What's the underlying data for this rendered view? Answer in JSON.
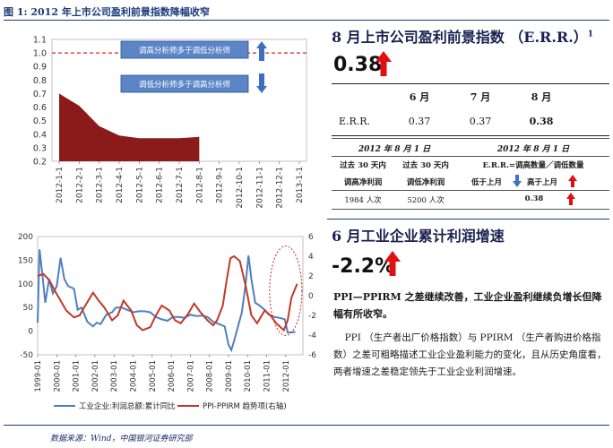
{
  "figure_title": "图 1:  2012 年上市公司盈利前景指数降幅收窄",
  "top_chart": {
    "chart_data": {
      "type": "area",
      "categories": [
        "2012-1-1",
        "2012-2-1",
        "2012-3-1",
        "2012-4-1",
        "2012-5-1",
        "2012-6-1",
        "2012-7-1",
        "2012-8-1",
        "2012-9-1",
        "2012-10-1",
        "2012-11-1",
        "2012-12-1",
        "2013-1-1"
      ],
      "values": [
        0.7,
        0.61,
        0.46,
        0.39,
        0.37,
        0.37,
        0.37,
        0.38,
        null,
        null,
        null,
        null,
        null
      ],
      "ylim": [
        0.2,
        1.1
      ],
      "yticks": [
        "1.1",
        "1.0",
        "0.9",
        "0.8",
        "0.7",
        "0.6",
        "0.5",
        "0.4",
        "0.3",
        "0.2"
      ],
      "reference_line": 1.0,
      "series_color": "#8b1a1a",
      "annotations": [
        "调高分析师多于调低分析师",
        "调低分析师多于调高分析师"
      ]
    }
  },
  "section_errr": {
    "heading": "8 月上市公司盈利前景指数 （E.R.R.）",
    "heading_sup": "1",
    "value": "0.38",
    "arrow": "up-arrow-icon",
    "table": {
      "months": [
        "6 月",
        "7 月",
        "8 月"
      ],
      "row_label": "E.R.R.",
      "values": [
        "0.37",
        "0.37",
        "0.38"
      ]
    },
    "sub_table": {
      "date_left": "2012 年 8 月 1 日",
      "date_right": "2012 年 8 月 1 日",
      "col1_line1": "过去 30 天内",
      "col1_line2": "调高净利润",
      "col2_line1": "过去 30 天内",
      "col2_line2": "调低净利润",
      "col3_line1": "E.R.R.=调高数量／调低数量",
      "col3_line2a": "低于上月",
      "col3_line2b": "高于上月",
      "col1_value": "1984 人次",
      "col2_value": "5200 人次",
      "col3_value": "0.38"
    }
  },
  "bottom_chart": {
    "chart_data": {
      "type": "line",
      "x_ticks": [
        "1999-01",
        "2000-01",
        "2001-01",
        "2002-01",
        "2003-01",
        "2004-01",
        "2005-01",
        "2006-01",
        "2007-01",
        "2008-01",
        "2009-01",
        "2010-01",
        "2011-01",
        "2012-01"
      ],
      "y_left_ticks": [
        "200",
        "150",
        "100",
        "50",
        "0",
        "-50"
      ],
      "y_right_ticks": [
        "6",
        "4",
        "2",
        "0",
        "-2",
        "-4",
        "-6"
      ],
      "ylim_left": [
        -50,
        200
      ],
      "ylim_right": [
        -6,
        6
      ],
      "series": [
        {
          "name": "工业企业:利润总额:累计同比",
          "color": "#4f7fc0",
          "axis": "left",
          "x": [
            1999.0,
            1999.1,
            1999.25,
            1999.4,
            1999.6,
            1999.8,
            2000.0,
            2000.2,
            2000.4,
            2000.6,
            2000.9,
            2001.1,
            2001.3,
            2001.6,
            2001.9,
            2002.1,
            2002.3,
            2002.6,
            2002.9,
            2003.1,
            2003.4,
            2003.7,
            2004.0,
            2004.3,
            2004.6,
            2004.9,
            2005.2,
            2005.5,
            2005.8,
            2006.1,
            2006.4,
            2006.7,
            2007.0,
            2007.3,
            2007.6,
            2007.9,
            2008.2,
            2008.5,
            2008.8,
            2009.0,
            2009.15,
            2009.3,
            2009.5,
            2009.7,
            2009.9,
            2010.05,
            2010.2,
            2010.4,
            2010.6,
            2010.9,
            2011.1,
            2011.4,
            2011.7,
            2011.95,
            2012.1,
            2012.3,
            2012.5
          ],
          "y": [
            18,
            173,
            120,
            60,
            110,
            80,
            95,
            155,
            110,
            95,
            90,
            45,
            50,
            20,
            10,
            18,
            15,
            35,
            40,
            50,
            50,
            45,
            40,
            42,
            42,
            40,
            30,
            25,
            22,
            30,
            30,
            28,
            35,
            32,
            33,
            30,
            20,
            15,
            10,
            -28,
            -40,
            -20,
            10,
            40,
            100,
            160,
            110,
            60,
            55,
            45,
            35,
            30,
            28,
            25,
            -3,
            -2,
            -2
          ]
        },
        {
          "name": "PPI-PPIRM 趋势项(右轴)",
          "color": "#c0392b",
          "axis": "right",
          "x": [
            1999.0,
            1999.3,
            1999.6,
            1999.9,
            2000.2,
            2000.5,
            2000.9,
            2001.2,
            2001.5,
            2001.9,
            2002.2,
            2002.5,
            2002.9,
            2003.2,
            2003.5,
            2003.9,
            2004.2,
            2004.5,
            2004.9,
            2005.2,
            2005.5,
            2005.9,
            2006.2,
            2006.5,
            2006.9,
            2007.2,
            2007.5,
            2007.9,
            2008.2,
            2008.4,
            2008.7,
            2008.9,
            2009.1,
            2009.3,
            2009.6,
            2009.9,
            2010.2,
            2010.5,
            2010.9,
            2011.2,
            2011.5,
            2011.9,
            2012.1,
            2012.3,
            2012.6
          ],
          "y": [
            2,
            2.2,
            1.6,
            0.5,
            -0.5,
            -1.5,
            -2.2,
            -2.0,
            -1.0,
            0.3,
            -0.5,
            -1.2,
            -2.5,
            -2.0,
            -0.5,
            -1.5,
            -3.0,
            -3.5,
            -3.2,
            -2.0,
            -1.0,
            -1.5,
            -2.5,
            -2.8,
            -1.8,
            -0.8,
            -1.6,
            -2.5,
            -3.0,
            -2.5,
            -1.0,
            1.5,
            3.8,
            4.0,
            3.5,
            1.0,
            -2.0,
            -2.8,
            -1.5,
            -2.0,
            -2.8,
            -3.5,
            -2.5,
            -0.2,
            1.2
          ]
        }
      ]
    }
  },
  "section_profit": {
    "heading": "6 月工业企业累计利润增速",
    "value": "-2.2%",
    "arrow": "up-arrow-icon",
    "bold_para": "PPI—PPIRM 之差继续改善，工业企业盈利继续负增长但降幅有所收窄。",
    "para": "PPI （生产者出厂价格指数）与 PPIRM （生产者购进价格指数）之差可粗略描述工业企业盈利能力的变化，且从历史角度看，两者增速之差稳定领先于工业企业利润增速。"
  },
  "footnote": "数据来源：Wind，中国银河证券研究部"
}
